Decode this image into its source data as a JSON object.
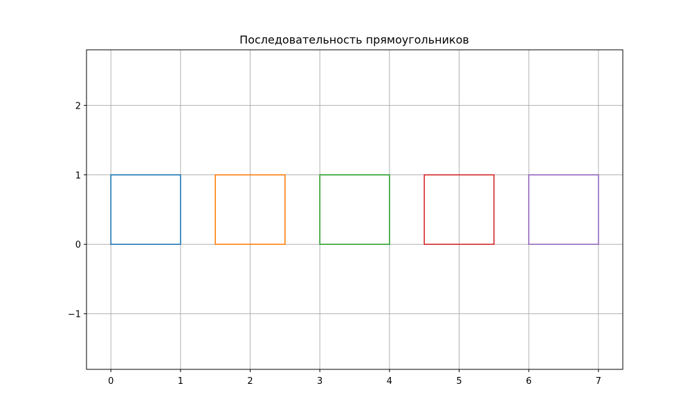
{
  "chart_data": {
    "type": "rectangles",
    "title": "Последовательность прямоугольников",
    "xlabel": "",
    "ylabel": "",
    "xlim": [
      -0.35,
      7.35
    ],
    "ylim": [
      -1.8,
      2.8
    ],
    "xticks": [
      0,
      1,
      2,
      3,
      4,
      5,
      6,
      7
    ],
    "yticks": [
      -1,
      0,
      1,
      2
    ],
    "xtick_labels": [
      "0",
      "1",
      "2",
      "3",
      "4",
      "5",
      "6",
      "7"
    ],
    "ytick_labels": [
      "−1",
      "0",
      "1",
      "2"
    ],
    "grid": true,
    "rectangles": [
      {
        "x": 0.0,
        "y": 0,
        "width": 1,
        "height": 1,
        "color": "#1f77b4"
      },
      {
        "x": 1.5,
        "y": 0,
        "width": 1,
        "height": 1,
        "color": "#ff7f0e"
      },
      {
        "x": 3.0,
        "y": 0,
        "width": 1,
        "height": 1,
        "color": "#2ca02c"
      },
      {
        "x": 4.5,
        "y": 0,
        "width": 1,
        "height": 1,
        "color": "#d62728"
      },
      {
        "x": 6.0,
        "y": 0,
        "width": 1,
        "height": 1,
        "color": "#9467bd"
      }
    ]
  }
}
